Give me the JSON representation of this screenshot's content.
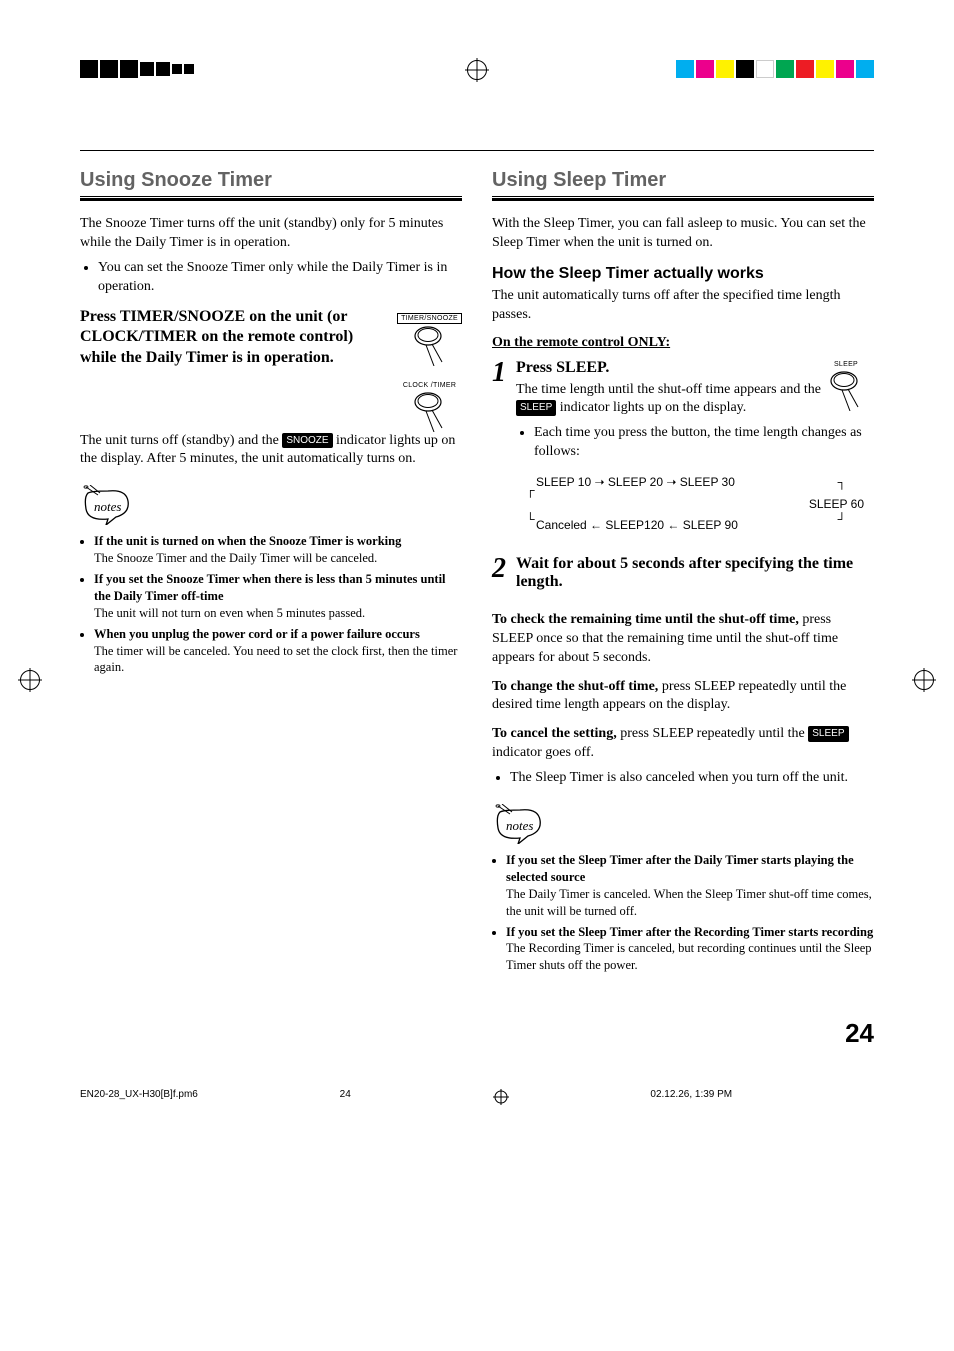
{
  "page": {
    "number": "24"
  },
  "crop_colors": [
    "#00aeef",
    "#ec008c",
    "#fff200",
    "#000000",
    "#ffffff",
    "#00a651",
    "#ed1c24",
    "#fff200",
    "#ec008c",
    "#00aeef"
  ],
  "left_col": {
    "heading": "Using Snooze Timer",
    "intro": "The Snooze Timer turns off the unit (standby) only for 5 minutes while the Daily Timer is in operation.",
    "intro_bullet": "You can set the Snooze Timer only while the Daily Timer is in operation.",
    "instruction": "Press TIMER/SNOOZE on the unit (or CLOCK/TIMER on the remote control) while the Daily Timer is in operation.",
    "btn1_label": "TIMER/SNOOZE",
    "btn2_label": "CLOCK\n/TIMER",
    "after1": "The unit turns off (standby) and the",
    "pill1": "SNOOZE",
    "after2": " indicator lights up on the display. After 5 minutes, the unit automatically turns on.",
    "notes": [
      {
        "b": "If the unit is turned on when the Snooze Timer is working",
        "d": "The Snooze Timer and the Daily Timer will be canceled."
      },
      {
        "b": "If you set the Snooze Timer when there is less than 5 minutes until the Daily Timer off-time",
        "d": "The unit will not turn on even when 5 minutes passed."
      },
      {
        "b": "When you unplug the power cord or if a power failure occurs",
        "d": "The timer will be canceled. You need to set the clock first, then the timer again."
      }
    ]
  },
  "right_col": {
    "heading": "Using Sleep Timer",
    "intro": "With the Sleep Timer, you can fall asleep to music. You can set the Sleep Timer when the unit is turned on.",
    "sub1": "How the Sleep Timer actually works",
    "sub1_body": "The unit automatically turns off after the specified time length passes.",
    "remote_only": "On the remote control ONLY:",
    "step1_title": "Press SLEEP.",
    "btn_sleep_label": "SLEEP",
    "step1_body1": "The time length until the shut-off time appears and the ",
    "pill_sleep": "SLEEP",
    "step1_body2": " indicator lights up on the display.",
    "step1_bullet": "Each time you press the button, the time length changes as follows:",
    "flow": {
      "l1": "SLEEP 10 ➝ SLEEP 20 ➝ SLEEP 30",
      "l2_right": "SLEEP 60",
      "l3": "Canceled ← SLEEP120 ← SLEEP 90"
    },
    "step2_title": "Wait for about 5 seconds after specifying the time length.",
    "check_b": "To check the remaining time until the shut-off time,",
    "check_d": " press SLEEP once so that the remaining time until the shut-off time appears for about 5 seconds.",
    "change_b": "To change the shut-off time,",
    "change_d": " press SLEEP repeatedly until the desired time length appears on the display.",
    "cancel_b": "To cancel the setting,",
    "cancel_d": " press SLEEP repeatedly until the ",
    "cancel_d2": " indicator goes off.",
    "cancel_bullet": "The Sleep Timer is also canceled when you turn off the unit.",
    "notes": [
      {
        "b": "If you set the Sleep Timer after the Daily Timer starts playing the selected source",
        "d": "The Daily Timer is canceled. When the Sleep Timer shut-off time comes, the unit will be turned off."
      },
      {
        "b": "If you set the Sleep Timer after the Recording Timer starts recording",
        "d": "The Recording Timer is canceled, but recording continues until the Sleep Timer shuts off the power."
      }
    ]
  },
  "footer": {
    "file": "EN20-28_UX-H30[B]f.pm6",
    "pg": "24",
    "date": "02.12.26, 1:39 PM"
  }
}
